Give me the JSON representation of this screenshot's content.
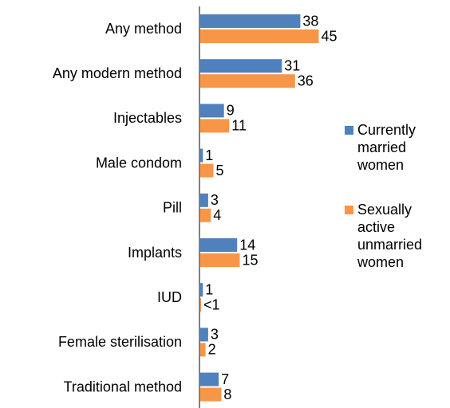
{
  "chart_data": {
    "type": "bar",
    "orientation": "horizontal",
    "categories": [
      "Any method",
      "Any modern method",
      "Injectables",
      "Male condom",
      "Pill",
      "Implants",
      "IUD",
      "Female sterilisation",
      "Traditional method"
    ],
    "series": [
      {
        "name": "Currently married women",
        "color": "#4f81bd",
        "values": [
          38,
          31,
          9,
          1,
          3,
          14,
          1,
          3,
          7
        ]
      },
      {
        "name": "Sexually active unmarried women",
        "color": "#f79646",
        "values": [
          45,
          36,
          11,
          5,
          4,
          15,
          0.3,
          2,
          8
        ],
        "value_labels": [
          "45",
          "36",
          "11",
          "5",
          "4",
          "15",
          "<1",
          "2",
          "8"
        ]
      }
    ],
    "legend": "right"
  }
}
